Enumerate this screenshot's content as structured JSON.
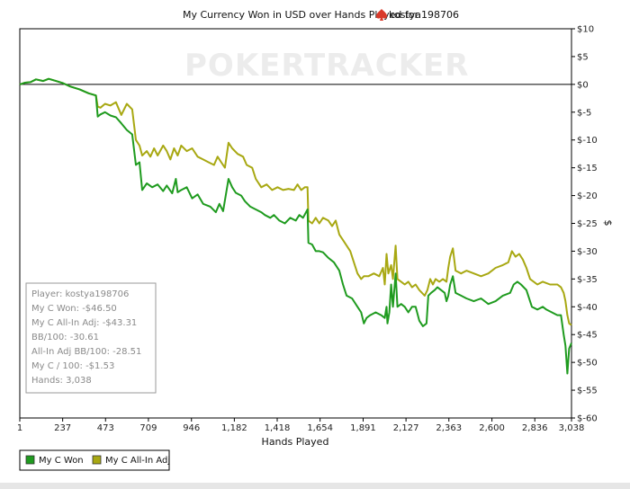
{
  "chart_data": {
    "type": "line",
    "title": "My Currency Won in USD over Hands Played for",
    "player": "kostya198706",
    "xlabel": "Hands Played",
    "ylabel": "$",
    "xlim": [
      1,
      3038
    ],
    "ylim": [
      -60,
      10
    ],
    "x_ticks": [
      1,
      237,
      473,
      709,
      946,
      1182,
      1418,
      1654,
      1891,
      2127,
      2363,
      2600,
      2836,
      3038
    ],
    "x_tick_labels": [
      "1",
      "237",
      "473",
      "709",
      "946",
      "1,182",
      "1,418",
      "1,654",
      "1,891",
      "2,127",
      "2,363",
      "2,600",
      "2,836",
      "3,038"
    ],
    "y_ticks": [
      10,
      5,
      0,
      -5,
      -10,
      -15,
      -20,
      -25,
      -30,
      -35,
      -40,
      -45,
      -50,
      -55,
      -60
    ],
    "y_tick_labels": [
      "$10",
      "$5",
      "$0",
      "$-5",
      "$-10",
      "$-15",
      "$-20",
      "$-25",
      "$-30",
      "$-35",
      "$-40",
      "$-45",
      "$-50",
      "$-55",
      "$-60"
    ],
    "zero_line": true,
    "grid": false,
    "watermark": "POKERTRACKER",
    "legend_position": "bottom-left",
    "series": [
      {
        "name": "My C Won",
        "color": "#1f9b1f",
        "points": [
          [
            1,
            0
          ],
          [
            30,
            0.3
          ],
          [
            60,
            0.4
          ],
          [
            90,
            0.9
          ],
          [
            130,
            0.6
          ],
          [
            160,
            1.0
          ],
          [
            200,
            0.6
          ],
          [
            240,
            0.2
          ],
          [
            280,
            -0.4
          ],
          [
            330,
            -0.9
          ],
          [
            380,
            -1.6
          ],
          [
            420,
            -2.0
          ],
          [
            430,
            -5.8
          ],
          [
            445,
            -5.4
          ],
          [
            470,
            -5.0
          ],
          [
            500,
            -5.6
          ],
          [
            530,
            -5.9
          ],
          [
            560,
            -7.0
          ],
          [
            590,
            -8.2
          ],
          [
            620,
            -9.0
          ],
          [
            640,
            -14.5
          ],
          [
            660,
            -14.0
          ],
          [
            675,
            -19.0
          ],
          [
            700,
            -17.8
          ],
          [
            730,
            -18.5
          ],
          [
            760,
            -18.0
          ],
          [
            790,
            -19.2
          ],
          [
            810,
            -18.2
          ],
          [
            840,
            -19.6
          ],
          [
            860,
            -17.0
          ],
          [
            870,
            -19.4
          ],
          [
            890,
            -19.0
          ],
          [
            920,
            -18.5
          ],
          [
            950,
            -20.5
          ],
          [
            980,
            -19.8
          ],
          [
            1010,
            -21.5
          ],
          [
            1050,
            -22.0
          ],
          [
            1080,
            -23.0
          ],
          [
            1100,
            -21.5
          ],
          [
            1120,
            -22.8
          ],
          [
            1150,
            -17.0
          ],
          [
            1170,
            -18.5
          ],
          [
            1190,
            -19.5
          ],
          [
            1220,
            -20.0
          ],
          [
            1240,
            -21.0
          ],
          [
            1270,
            -22.0
          ],
          [
            1300,
            -22.5
          ],
          [
            1330,
            -23.0
          ],
          [
            1350,
            -23.5
          ],
          [
            1380,
            -24.0
          ],
          [
            1400,
            -23.5
          ],
          [
            1430,
            -24.5
          ],
          [
            1460,
            -25.0
          ],
          [
            1490,
            -24.0
          ],
          [
            1520,
            -24.5
          ],
          [
            1540,
            -23.5
          ],
          [
            1560,
            -24.0
          ],
          [
            1585,
            -22.5
          ],
          [
            1590,
            -28.5
          ],
          [
            1610,
            -28.8
          ],
          [
            1630,
            -30.0
          ],
          [
            1650,
            -30.0
          ],
          [
            1670,
            -30.2
          ],
          [
            1700,
            -31.2
          ],
          [
            1730,
            -32.0
          ],
          [
            1760,
            -33.5
          ],
          [
            1780,
            -36.0
          ],
          [
            1800,
            -38.0
          ],
          [
            1830,
            -38.5
          ],
          [
            1860,
            -40.0
          ],
          [
            1880,
            -41.0
          ],
          [
            1895,
            -43.0
          ],
          [
            1910,
            -42.0
          ],
          [
            1930,
            -41.5
          ],
          [
            1960,
            -41.0
          ],
          [
            1990,
            -41.5
          ],
          [
            2010,
            -42.0
          ],
          [
            2020,
            -40.0
          ],
          [
            2025,
            -43.0
          ],
          [
            2035,
            -41.0
          ],
          [
            2045,
            -36.0
          ],
          [
            2055,
            -40.0
          ],
          [
            2070,
            -34.0
          ],
          [
            2080,
            -40.0
          ],
          [
            2100,
            -39.5
          ],
          [
            2120,
            -40.0
          ],
          [
            2140,
            -41.0
          ],
          [
            2160,
            -40.0
          ],
          [
            2180,
            -40.0
          ],
          [
            2200,
            -42.5
          ],
          [
            2220,
            -43.5
          ],
          [
            2240,
            -43.0
          ],
          [
            2250,
            -38.0
          ],
          [
            2265,
            -37.5
          ],
          [
            2285,
            -37.0
          ],
          [
            2300,
            -36.5
          ],
          [
            2320,
            -37.0
          ],
          [
            2340,
            -37.5
          ],
          [
            2350,
            -39.0
          ],
          [
            2360,
            -38.0
          ],
          [
            2370,
            -36.0
          ],
          [
            2385,
            -34.5
          ],
          [
            2400,
            -37.5
          ],
          [
            2430,
            -38.0
          ],
          [
            2460,
            -38.5
          ],
          [
            2500,
            -39.0
          ],
          [
            2540,
            -38.5
          ],
          [
            2580,
            -39.5
          ],
          [
            2620,
            -39.0
          ],
          [
            2660,
            -38.0
          ],
          [
            2700,
            -37.5
          ],
          [
            2720,
            -36.0
          ],
          [
            2740,
            -35.5
          ],
          [
            2760,
            -36.0
          ],
          [
            2790,
            -37.0
          ],
          [
            2820,
            -40.0
          ],
          [
            2850,
            -40.5
          ],
          [
            2880,
            -40.0
          ],
          [
            2900,
            -40.5
          ],
          [
            2930,
            -41.0
          ],
          [
            2960,
            -41.5
          ],
          [
            2980,
            -41.5
          ],
          [
            2995,
            -45.0
          ],
          [
            3005,
            -47.0
          ],
          [
            3015,
            -52.0
          ],
          [
            3025,
            -47.5
          ],
          [
            3038,
            -46.5
          ]
        ]
      },
      {
        "name": "My C All-In Adj",
        "color": "#a8a812",
        "points": [
          [
            1,
            0
          ],
          [
            30,
            0.3
          ],
          [
            60,
            0.4
          ],
          [
            90,
            0.9
          ],
          [
            130,
            0.6
          ],
          [
            160,
            1.0
          ],
          [
            200,
            0.6
          ],
          [
            240,
            0.2
          ],
          [
            280,
            -0.4
          ],
          [
            330,
            -0.9
          ],
          [
            380,
            -1.6
          ],
          [
            420,
            -2.0
          ],
          [
            430,
            -4.0
          ],
          [
            445,
            -4.2
          ],
          [
            470,
            -3.5
          ],
          [
            500,
            -3.8
          ],
          [
            530,
            -3.2
          ],
          [
            560,
            -5.5
          ],
          [
            590,
            -3.5
          ],
          [
            620,
            -4.5
          ],
          [
            640,
            -10.0
          ],
          [
            660,
            -11.0
          ],
          [
            675,
            -12.8
          ],
          [
            700,
            -12.0
          ],
          [
            720,
            -13.0
          ],
          [
            740,
            -11.5
          ],
          [
            760,
            -12.8
          ],
          [
            790,
            -11.0
          ],
          [
            810,
            -12.0
          ],
          [
            830,
            -13.5
          ],
          [
            850,
            -11.5
          ],
          [
            870,
            -12.8
          ],
          [
            890,
            -11.0
          ],
          [
            920,
            -12.0
          ],
          [
            950,
            -11.5
          ],
          [
            980,
            -13.0
          ],
          [
            1010,
            -13.5
          ],
          [
            1040,
            -14.0
          ],
          [
            1070,
            -14.5
          ],
          [
            1090,
            -13.0
          ],
          [
            1110,
            -14.0
          ],
          [
            1130,
            -15.0
          ],
          [
            1150,
            -10.5
          ],
          [
            1170,
            -11.5
          ],
          [
            1200,
            -12.5
          ],
          [
            1230,
            -13.0
          ],
          [
            1250,
            -14.5
          ],
          [
            1280,
            -15.0
          ],
          [
            1300,
            -17.0
          ],
          [
            1330,
            -18.5
          ],
          [
            1360,
            -18.0
          ],
          [
            1390,
            -19.0
          ],
          [
            1420,
            -18.5
          ],
          [
            1450,
            -19.0
          ],
          [
            1480,
            -18.8
          ],
          [
            1510,
            -19.0
          ],
          [
            1530,
            -18.0
          ],
          [
            1550,
            -19.0
          ],
          [
            1570,
            -18.5
          ],
          [
            1585,
            -18.5
          ],
          [
            1590,
            -24.5
          ],
          [
            1610,
            -25.0
          ],
          [
            1630,
            -24.0
          ],
          [
            1650,
            -25.0
          ],
          [
            1670,
            -24.0
          ],
          [
            1700,
            -24.5
          ],
          [
            1720,
            -25.5
          ],
          [
            1740,
            -24.5
          ],
          [
            1760,
            -27.0
          ],
          [
            1780,
            -28.0
          ],
          [
            1800,
            -29.0
          ],
          [
            1820,
            -30.0
          ],
          [
            1840,
            -32.0
          ],
          [
            1860,
            -34.0
          ],
          [
            1880,
            -35.0
          ],
          [
            1895,
            -34.5
          ],
          [
            1920,
            -34.5
          ],
          [
            1950,
            -34.0
          ],
          [
            1980,
            -34.5
          ],
          [
            2000,
            -33.0
          ],
          [
            2010,
            -36.0
          ],
          [
            2020,
            -30.5
          ],
          [
            2030,
            -34.0
          ],
          [
            2045,
            -32.5
          ],
          [
            2055,
            -35.0
          ],
          [
            2070,
            -29.0
          ],
          [
            2080,
            -35.0
          ],
          [
            2100,
            -35.5
          ],
          [
            2120,
            -36.0
          ],
          [
            2140,
            -35.5
          ],
          [
            2160,
            -36.5
          ],
          [
            2180,
            -36.0
          ],
          [
            2200,
            -37.0
          ],
          [
            2230,
            -38.0
          ],
          [
            2245,
            -37.0
          ],
          [
            2260,
            -35.0
          ],
          [
            2275,
            -36.0
          ],
          [
            2290,
            -35.0
          ],
          [
            2310,
            -35.5
          ],
          [
            2330,
            -35.0
          ],
          [
            2350,
            -35.5
          ],
          [
            2360,
            -33.0
          ],
          [
            2370,
            -31.0
          ],
          [
            2385,
            -29.5
          ],
          [
            2400,
            -33.5
          ],
          [
            2430,
            -34.0
          ],
          [
            2460,
            -33.5
          ],
          [
            2500,
            -34.0
          ],
          [
            2540,
            -34.5
          ],
          [
            2580,
            -34.0
          ],
          [
            2620,
            -33.0
          ],
          [
            2660,
            -32.5
          ],
          [
            2690,
            -32.0
          ],
          [
            2710,
            -30.0
          ],
          [
            2730,
            -31.0
          ],
          [
            2750,
            -30.5
          ],
          [
            2770,
            -31.5
          ],
          [
            2790,
            -33.0
          ],
          [
            2810,
            -35.0
          ],
          [
            2850,
            -36.0
          ],
          [
            2880,
            -35.5
          ],
          [
            2920,
            -36.0
          ],
          [
            2960,
            -36.0
          ],
          [
            2980,
            -36.5
          ],
          [
            2995,
            -37.5
          ],
          [
            3005,
            -39.0
          ],
          [
            3015,
            -41.5
          ],
          [
            3025,
            -43.0
          ],
          [
            3038,
            -43.3
          ]
        ]
      }
    ]
  },
  "stats": [
    "Player: kostya198706",
    "My C Won: -$46.50",
    "My C All-In Adj: -$43.31",
    "BB/100: -30.61",
    "All-In Adj BB/100: -28.51",
    "My C / 100: -$1.53",
    "Hands: 3,038"
  ],
  "colors": {
    "won": "#1f9b1f",
    "adj": "#a8a812",
    "spade_icon": "#d93a2b"
  }
}
